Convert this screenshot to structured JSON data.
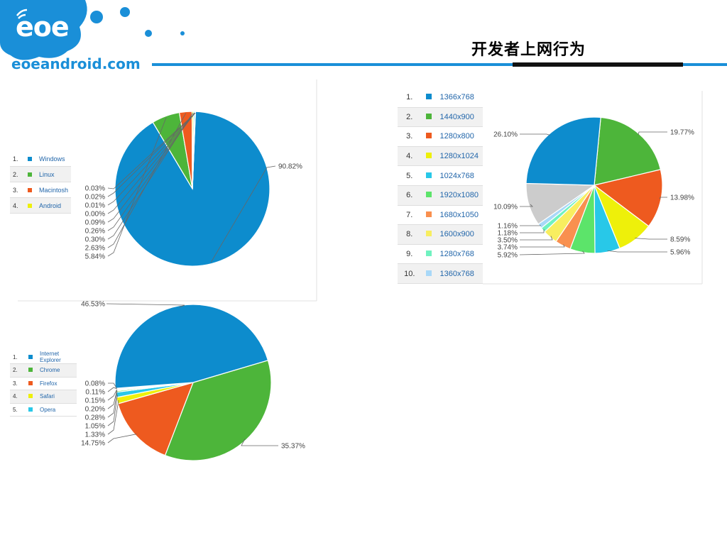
{
  "header": {
    "logo_text": "eoe",
    "site_name": "eoeandroid.com",
    "title": "开发者上网行为"
  },
  "colors": {
    "brand_blue": "#1a8fd8",
    "blue": "#0d8ccd",
    "green": "#4db53a",
    "orange": "#ee5a1f",
    "yellow": "#eef00a",
    "cyan": "#28c8e8",
    "light_green": "#5ce46a",
    "light_orange": "#f9904f",
    "light_yellow": "#f8ee60",
    "mint": "#70f2c0",
    "light_blue": "#a8d8f8",
    "gray": "#cccccc"
  },
  "chart_data": [
    {
      "type": "pie",
      "legend": [
        "Windows",
        "Linux",
        "Macintosh",
        "Android"
      ],
      "legend_placement": "left",
      "slices": [
        {
          "label": "90.82%",
          "value": 90.82,
          "color": "#0d8ccd"
        },
        {
          "label": "5.84%",
          "value": 5.84,
          "color": "#4db53a"
        },
        {
          "label": "2.63%",
          "value": 2.63,
          "color": "#ee5a1f"
        },
        {
          "label": "0.30%",
          "value": 0.3,
          "color": "#eef00a"
        },
        {
          "label": "0.26%",
          "value": 0.26,
          "color": "#28c8e8"
        },
        {
          "label": "0.09%",
          "value": 0.09,
          "color": "#5ce46a"
        },
        {
          "label": "0.00%",
          "value": 0.0,
          "color": "#f9904f"
        },
        {
          "label": "0.01%",
          "value": 0.01,
          "color": "#f8ee60"
        },
        {
          "label": "0.02%",
          "value": 0.02,
          "color": "#70f2c0"
        },
        {
          "label": "0.03%",
          "value": 0.03,
          "color": "#a8d8f8"
        }
      ]
    },
    {
      "type": "pie",
      "legend": [
        "1366x768",
        "1440x900",
        "1280x800",
        "1280x1024",
        "1024x768",
        "1920x1080",
        "1680x1050",
        "1600x900",
        "1280x768",
        "1360x768"
      ],
      "legend_placement": "left",
      "slices": [
        {
          "label": "19.77%",
          "value": 19.77,
          "color": "#4db53a"
        },
        {
          "label": "13.98%",
          "value": 13.98,
          "color": "#ee5a1f"
        },
        {
          "label": "8.59%",
          "value": 8.59,
          "color": "#eef00a"
        },
        {
          "label": "5.96%",
          "value": 5.96,
          "color": "#28c8e8"
        },
        {
          "label": "5.92%",
          "value": 5.92,
          "color": "#5ce46a"
        },
        {
          "label": "3.74%",
          "value": 3.74,
          "color": "#f9904f"
        },
        {
          "label": "3.50%",
          "value": 3.5,
          "color": "#f8ee60"
        },
        {
          "label": "1.18%",
          "value": 1.18,
          "color": "#70f2c0"
        },
        {
          "label": "1.16%",
          "value": 1.16,
          "color": "#a8d8f8"
        },
        {
          "label": "10.09%",
          "value": 10.09,
          "color": "#cccccc"
        },
        {
          "label": "26.10%",
          "value": 26.1,
          "color": "#0d8ccd"
        }
      ]
    },
    {
      "type": "pie",
      "legend": [
        "Internet Explorer",
        "Chrome",
        "Firefox",
        "Safari",
        "Opera"
      ],
      "legend_placement": "left",
      "slices": [
        {
          "label": "35.37%",
          "value": 35.37,
          "color": "#4db53a"
        },
        {
          "label": "14.75%",
          "value": 14.75,
          "color": "#ee5a1f"
        },
        {
          "label": "1.33%",
          "value": 1.33,
          "color": "#eef00a"
        },
        {
          "label": "1.05%",
          "value": 1.05,
          "color": "#28c8e8"
        },
        {
          "label": "0.28%",
          "value": 0.28,
          "color": "#5ce46a"
        },
        {
          "label": "0.20%",
          "value": 0.2,
          "color": "#f9904f"
        },
        {
          "label": "0.15%",
          "value": 0.15,
          "color": "#f8ee60"
        },
        {
          "label": "0.11%",
          "value": 0.11,
          "color": "#70f2c0"
        },
        {
          "label": "0.08%",
          "value": 0.08,
          "color": "#a8d8f8"
        },
        {
          "label": "46.53%",
          "value": 46.53,
          "color": "#0d8ccd"
        }
      ]
    }
  ]
}
